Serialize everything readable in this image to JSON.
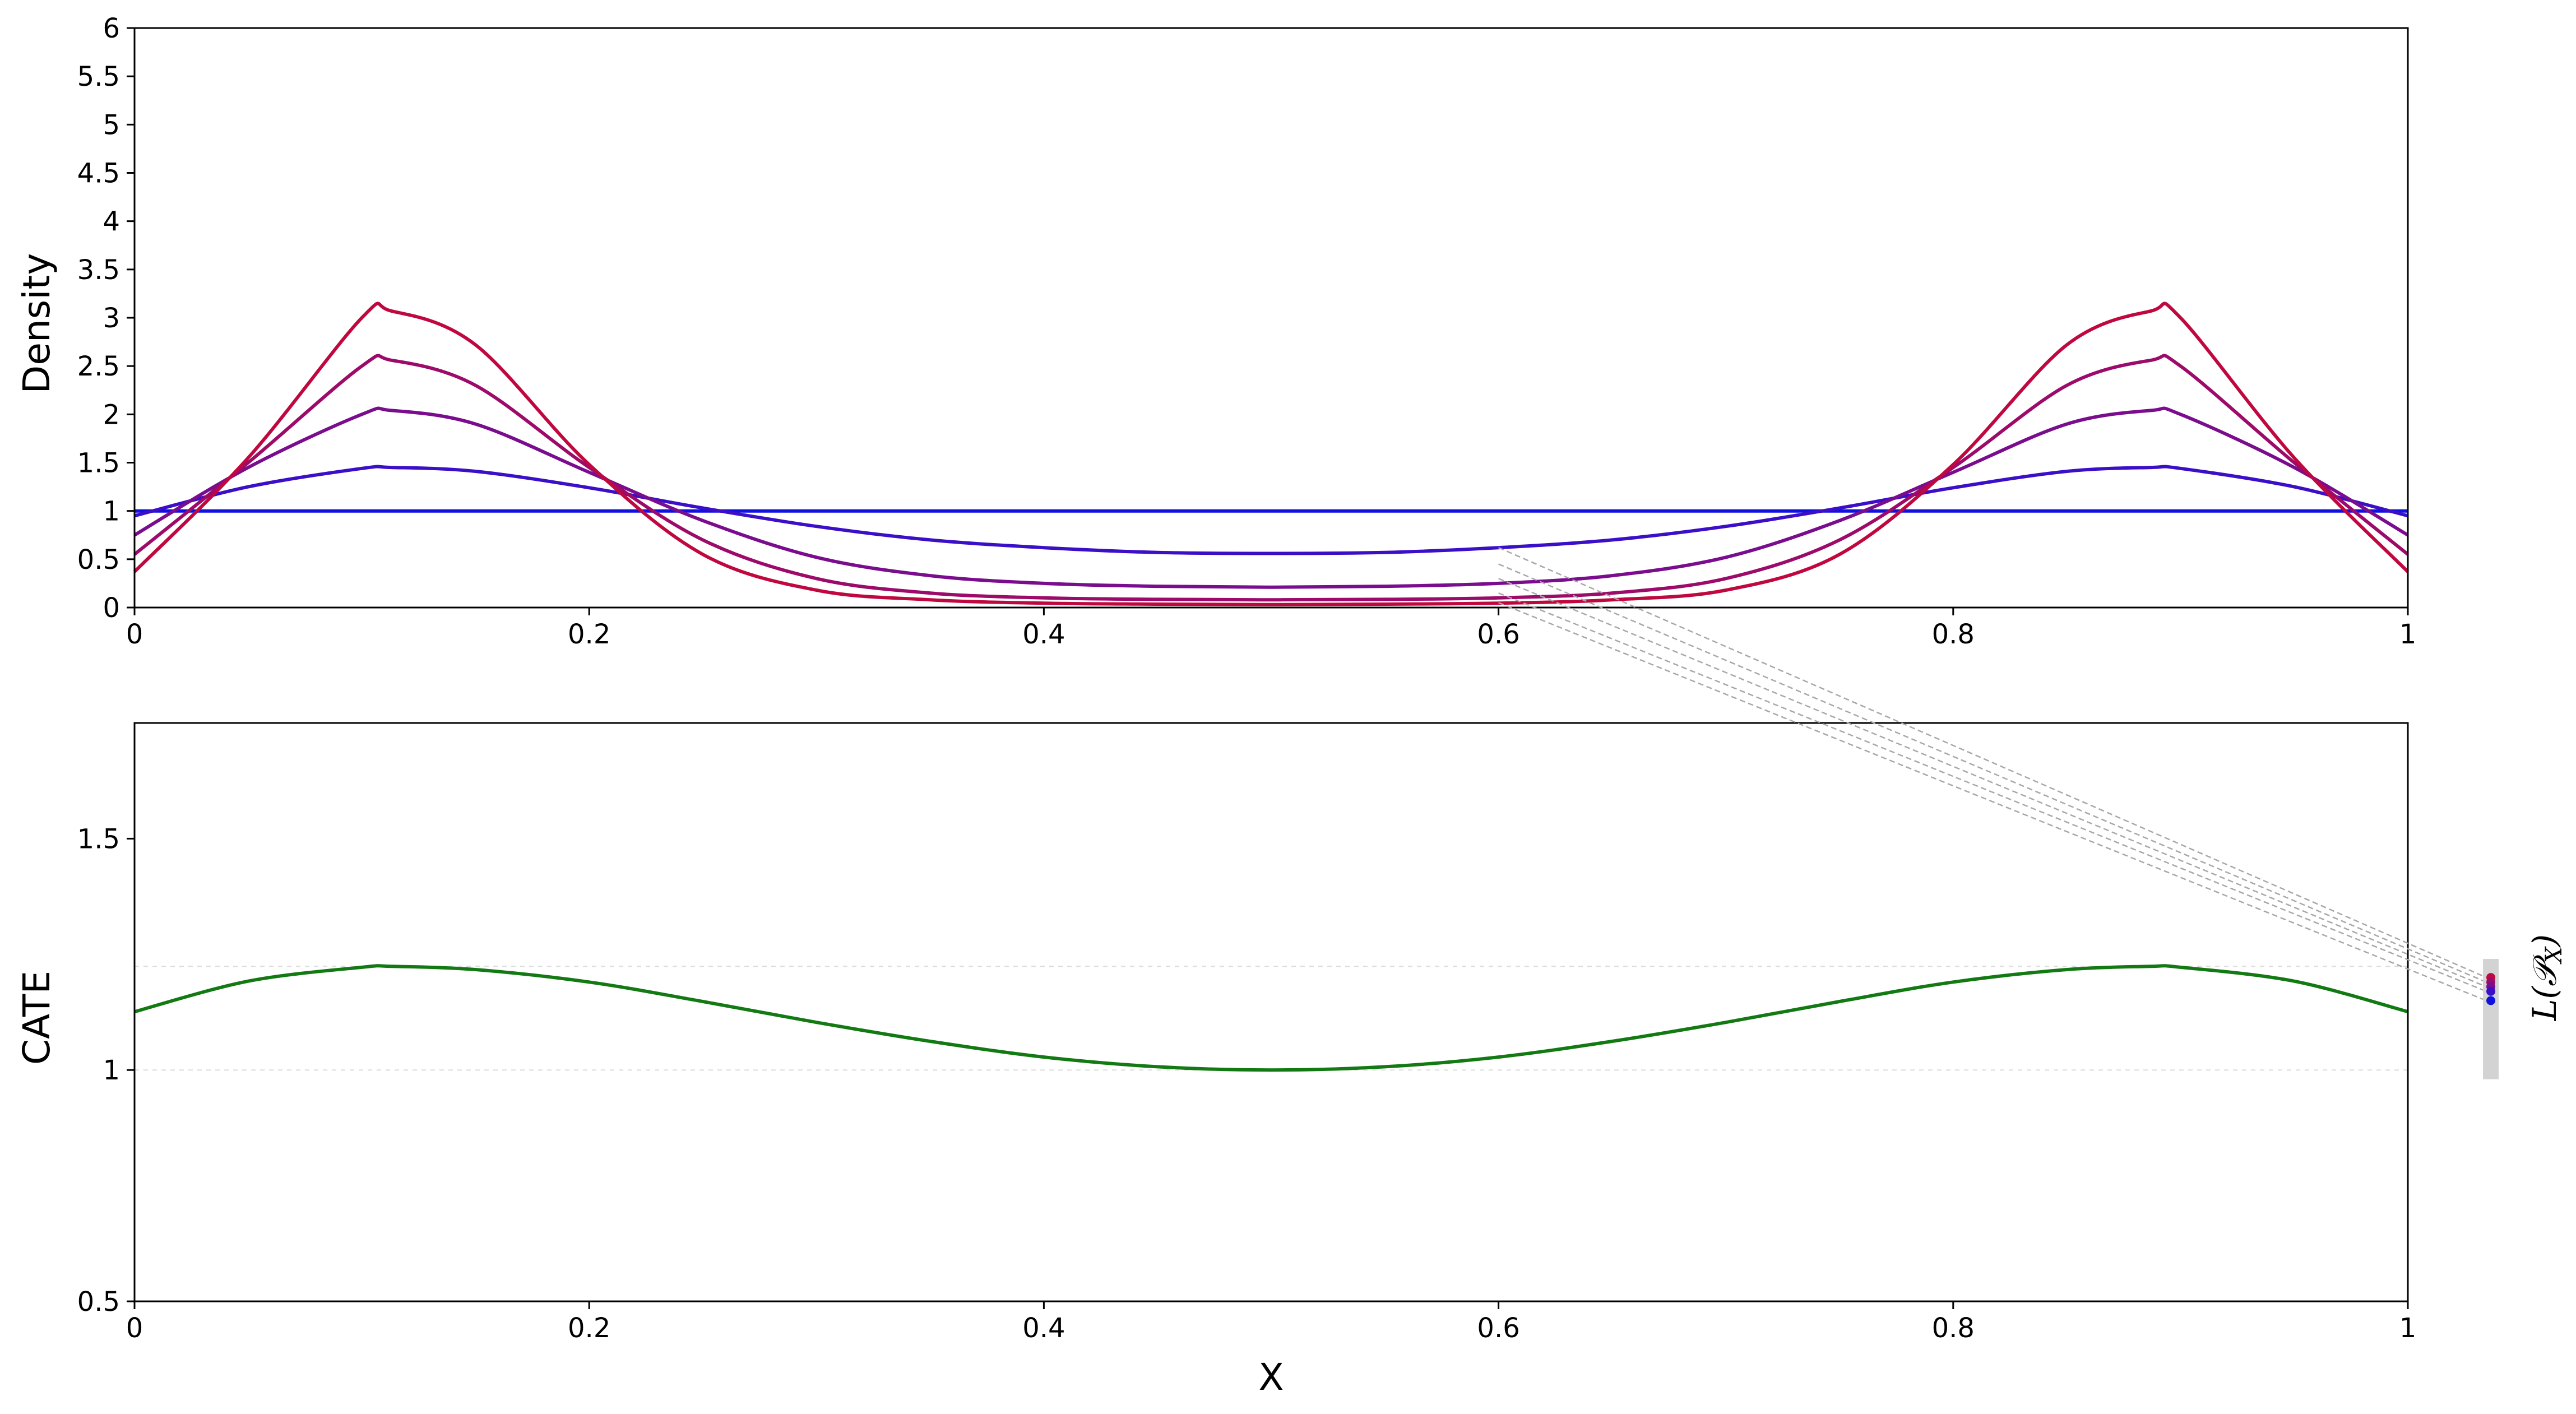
{
  "chart_data": [
    {
      "id": "density",
      "type": "line",
      "ylabel": "Density",
      "xlim": [
        0,
        1
      ],
      "ylim": [
        0,
        6
      ],
      "x_ticks": [
        "0",
        "0.2",
        "0.4",
        "0.6",
        "0.8",
        "1"
      ],
      "y_ticks": [
        "0",
        "0.5",
        "1",
        "1.5",
        "2",
        "2.5",
        "3",
        "3.5",
        "4",
        "4.5",
        "5",
        "5.5",
        "6"
      ],
      "x": [
        0,
        0.05,
        0.1,
        0.113,
        0.15,
        0.2,
        0.25,
        0.3,
        0.35,
        0.4,
        0.45,
        0.5,
        0.55,
        0.6,
        0.65,
        0.7,
        0.75,
        0.8,
        0.85,
        0.887,
        0.9,
        0.95,
        1
      ],
      "series": [
        {
          "color": "#1010e0",
          "values": [
            1,
            1,
            1,
            1,
            1,
            1,
            1,
            1,
            1,
            1,
            1,
            1,
            1,
            1,
            1,
            1,
            1,
            1,
            1,
            1,
            1,
            1,
            1
          ]
        },
        {
          "color": "#3b0ec8",
          "values": [
            0.95,
            1.25,
            1.44,
            1.45,
            1.41,
            1.24,
            1.03,
            0.84,
            0.7,
            0.62,
            0.57,
            0.56,
            0.57,
            0.62,
            0.7,
            0.84,
            1.03,
            1.24,
            1.41,
            1.45,
            1.44,
            1.25,
            0.95
          ]
        },
        {
          "color": "#7a0c8e",
          "values": [
            0.75,
            1.45,
            2.0,
            2.04,
            1.9,
            1.4,
            0.9,
            0.52,
            0.33,
            0.25,
            0.22,
            0.21,
            0.22,
            0.25,
            0.33,
            0.52,
            0.9,
            1.4,
            1.9,
            2.04,
            2.0,
            1.45,
            0.75
          ]
        },
        {
          "color": "#9c0a6a",
          "values": [
            0.55,
            1.5,
            2.5,
            2.56,
            2.3,
            1.45,
            0.7,
            0.3,
            0.15,
            0.1,
            0.085,
            0.08,
            0.085,
            0.1,
            0.15,
            0.3,
            0.7,
            1.45,
            2.3,
            2.56,
            2.5,
            1.5,
            0.55
          ]
        },
        {
          "color": "#c00840",
          "values": [
            0.37,
            1.55,
            3.0,
            3.07,
            2.72,
            1.48,
            0.55,
            0.18,
            0.08,
            0.045,
            0.035,
            0.03,
            0.035,
            0.045,
            0.08,
            0.18,
            0.55,
            1.48,
            2.72,
            3.07,
            3.0,
            1.55,
            0.37
          ]
        }
      ]
    },
    {
      "id": "cate",
      "type": "line",
      "xlabel": "X",
      "ylabel": "CATE",
      "xlim": [
        0,
        1
      ],
      "ylim": [
        0.5,
        1.75
      ],
      "x_ticks": [
        "0",
        "0.2",
        "0.4",
        "0.6",
        "0.8",
        "1"
      ],
      "y_ticks": [
        "0.5",
        "1",
        "1.5"
      ],
      "x": [
        0,
        0.05,
        0.1,
        0.113,
        0.15,
        0.2,
        0.25,
        0.3,
        0.35,
        0.4,
        0.45,
        0.5,
        0.55,
        0.6,
        0.65,
        0.7,
        0.75,
        0.8,
        0.85,
        0.887,
        0.9,
        0.95,
        1
      ],
      "series": [
        {
          "color": "#137a13",
          "values": [
            1.126,
            1.192,
            1.222,
            1.224,
            1.217,
            1.19,
            1.148,
            1.103,
            1.062,
            1.028,
            1.007,
            1.0,
            1.007,
            1.028,
            1.062,
            1.103,
            1.148,
            1.19,
            1.217,
            1.224,
            1.222,
            1.192,
            1.126
          ]
        }
      ],
      "reference_lines": [
        1.0,
        1.224
      ]
    }
  ],
  "side_panel": {
    "label": "L(𝒫",
    "label_sub": "X",
    "label_close": ")",
    "points": [
      {
        "value": 1.2,
        "color": "#c00840"
      },
      {
        "value": 1.19,
        "color": "#9c0a6a"
      },
      {
        "value": 1.18,
        "color": "#7a0c8e"
      },
      {
        "value": 1.17,
        "color": "#3b0ec8"
      },
      {
        "value": 1.15,
        "color": "#1010e0"
      }
    ]
  },
  "connectors": {
    "color": "#a8a8a8",
    "from_x": 0.6,
    "from_y": [
      0.62,
      0.45,
      0.3,
      0.15,
      0.05
    ]
  }
}
